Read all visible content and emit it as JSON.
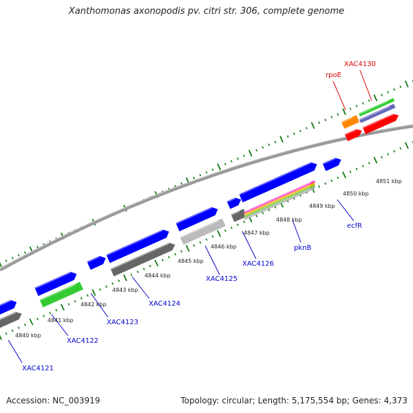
{
  "title": "Xanthomonas axonopodis pv. citri str. 306, complete genome",
  "footer": {
    "accession": "Accession: NC_003919",
    "topology": "Topology: circular; Length: 5,175,554 bp; Genes: 4,373"
  },
  "colors": {
    "forward_cds": "#0000ff",
    "reverse_cds": "#666666",
    "rna_gene": "#ff0000",
    "highlight_gene": "#33cc33",
    "tick": "#117711",
    "backbone": "#999999",
    "gene_label": "#0000cc",
    "gene_label_alt": "#dd0000"
  },
  "scale": {
    "ticks": [
      "4840 kbp",
      "4841 kbp",
      "4842 kbp",
      "4843 kbp",
      "4844 kbp",
      "4845 kbp",
      "4846 kbp",
      "4847 kbp",
      "4848 kbp",
      "4849 kbp",
      "4850 kbp",
      "4851 kbp"
    ]
  },
  "gene_labels": [
    {
      "name": "XAC4121",
      "color": "#0000cc"
    },
    {
      "name": "XAC4122",
      "color": "#0000cc"
    },
    {
      "name": "XAC4123",
      "color": "#0000cc"
    },
    {
      "name": "XAC4124",
      "color": "#0000cc"
    },
    {
      "name": "XAC4125",
      "color": "#0000cc"
    },
    {
      "name": "XAC4126",
      "color": "#0000cc"
    },
    {
      "name": "pknB",
      "color": "#0000cc"
    },
    {
      "name": "ecfR",
      "color": "#0000cc"
    },
    {
      "name": "rpoE",
      "color": "#dd0000"
    },
    {
      "name": "XAC4130",
      "color": "#dd0000"
    }
  ]
}
